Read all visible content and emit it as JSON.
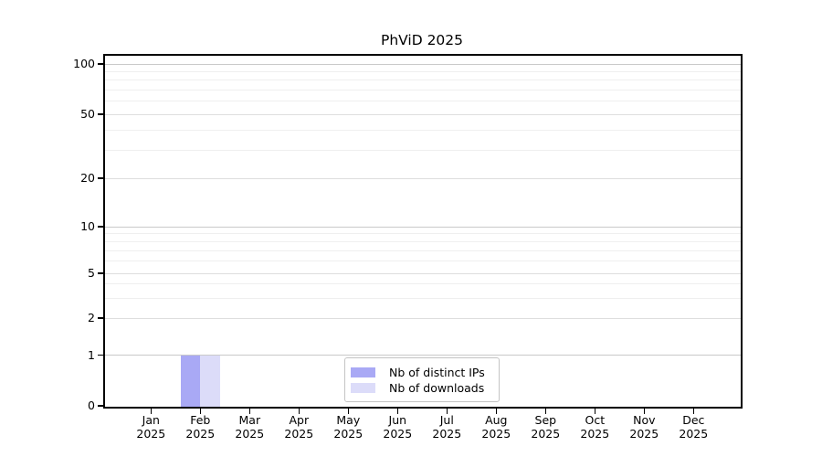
{
  "title": "PhViD 2025",
  "chart_data": {
    "type": "bar",
    "title": "PhViD 2025",
    "categories": [
      "Jan",
      "Feb",
      "Mar",
      "Apr",
      "May",
      "Jun",
      "Jul",
      "Aug",
      "Sep",
      "Oct",
      "Nov",
      "Dec"
    ],
    "category_year": "2025",
    "series": [
      {
        "name": "Nb of distinct IPs",
        "color": "#a9a9f5",
        "values": [
          0,
          1,
          0,
          0,
          0,
          0,
          0,
          0,
          0,
          0,
          0,
          0
        ]
      },
      {
        "name": "Nb of downloads",
        "color": "#dcdcf9",
        "values": [
          0,
          1,
          0,
          0,
          0,
          0,
          0,
          0,
          0,
          0,
          0,
          0
        ]
      }
    ],
    "xlabel": "",
    "ylabel": "",
    "yscale": "symlog",
    "ylim": [
      0,
      115
    ],
    "yticks_major": [
      0,
      1,
      2,
      5,
      10,
      20,
      50,
      100
    ],
    "yticks_minor": [
      3,
      4,
      6,
      7,
      8,
      9,
      30,
      40,
      60,
      70,
      80,
      90
    ],
    "grid": "horizontal",
    "legend_position": "lower-center-inside"
  },
  "colors": {
    "background": "#ffffff",
    "axis": "#000000",
    "grid_major_decade": "#c9c9c9",
    "grid_major": "#dedede",
    "grid_minor": "#efefef",
    "bar_distinct_ips": "#a9a9f5",
    "bar_downloads": "#dcdcf9",
    "legend_border": "#c4c4c4"
  }
}
